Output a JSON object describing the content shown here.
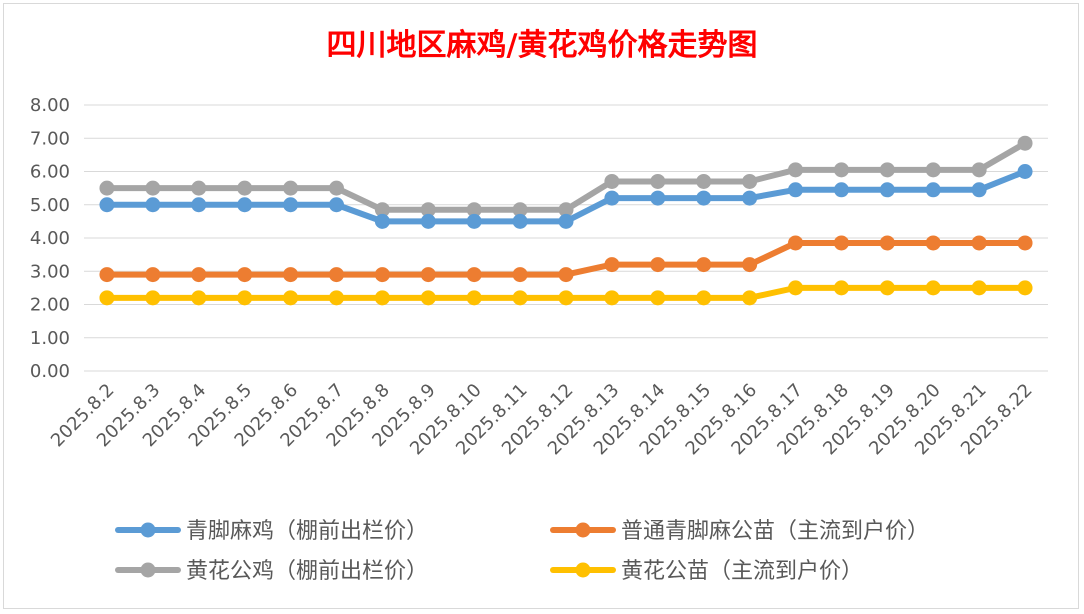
{
  "chart_data": {
    "type": "line",
    "title": "四川地区麻鸡/黄花鸡价格走势图",
    "title_color": "#ff0000",
    "xlabel": "",
    "ylabel": "",
    "ylim": [
      0,
      8
    ],
    "yticks": [
      "0.00",
      "1.00",
      "2.00",
      "3.00",
      "4.00",
      "5.00",
      "6.00",
      "7.00",
      "8.00"
    ],
    "grid": true,
    "legend_position": "bottom",
    "x": [
      "2025.8.2",
      "2025.8.3",
      "2025.8.4",
      "2025.8.5",
      "2025.8.6",
      "2025.8.7",
      "2025.8.8",
      "2025.8.9",
      "2025.8.10",
      "2025.8.11",
      "2025.8.12",
      "2025.8.13",
      "2025.8.14",
      "2025.8.15",
      "2025.8.16",
      "2025.8.17",
      "2025.8.18",
      "2025.8.19",
      "2025.8.20",
      "2025.8.21",
      "2025.8.22"
    ],
    "series": [
      {
        "name": "青脚麻鸡（棚前出栏价）",
        "color": "#5b9bd5",
        "values": [
          5.0,
          5.0,
          5.0,
          5.0,
          5.0,
          5.0,
          4.5,
          4.5,
          4.5,
          4.5,
          4.5,
          5.2,
          5.2,
          5.2,
          5.2,
          5.45,
          5.45,
          5.45,
          5.45,
          5.45,
          6.0
        ]
      },
      {
        "name": "普通青脚麻公苗（主流到户价）",
        "color": "#ed7d31",
        "values": [
          2.9,
          2.9,
          2.9,
          2.9,
          2.9,
          2.9,
          2.9,
          2.9,
          2.9,
          2.9,
          2.9,
          3.2,
          3.2,
          3.2,
          3.2,
          3.85,
          3.85,
          3.85,
          3.85,
          3.85,
          3.85
        ]
      },
      {
        "name": "黄花公鸡（棚前出栏价）",
        "color": "#a5a5a5",
        "values": [
          5.5,
          5.5,
          5.5,
          5.5,
          5.5,
          5.5,
          4.85,
          4.85,
          4.85,
          4.85,
          4.85,
          5.7,
          5.7,
          5.7,
          5.7,
          6.05,
          6.05,
          6.05,
          6.05,
          6.05,
          6.85
        ]
      },
      {
        "name": "黄花公苗（主流到户价）",
        "color": "#ffc000",
        "values": [
          2.2,
          2.2,
          2.2,
          2.2,
          2.2,
          2.2,
          2.2,
          2.2,
          2.2,
          2.2,
          2.2,
          2.2,
          2.2,
          2.2,
          2.2,
          2.5,
          2.5,
          2.5,
          2.5,
          2.5,
          2.5
        ]
      }
    ]
  }
}
